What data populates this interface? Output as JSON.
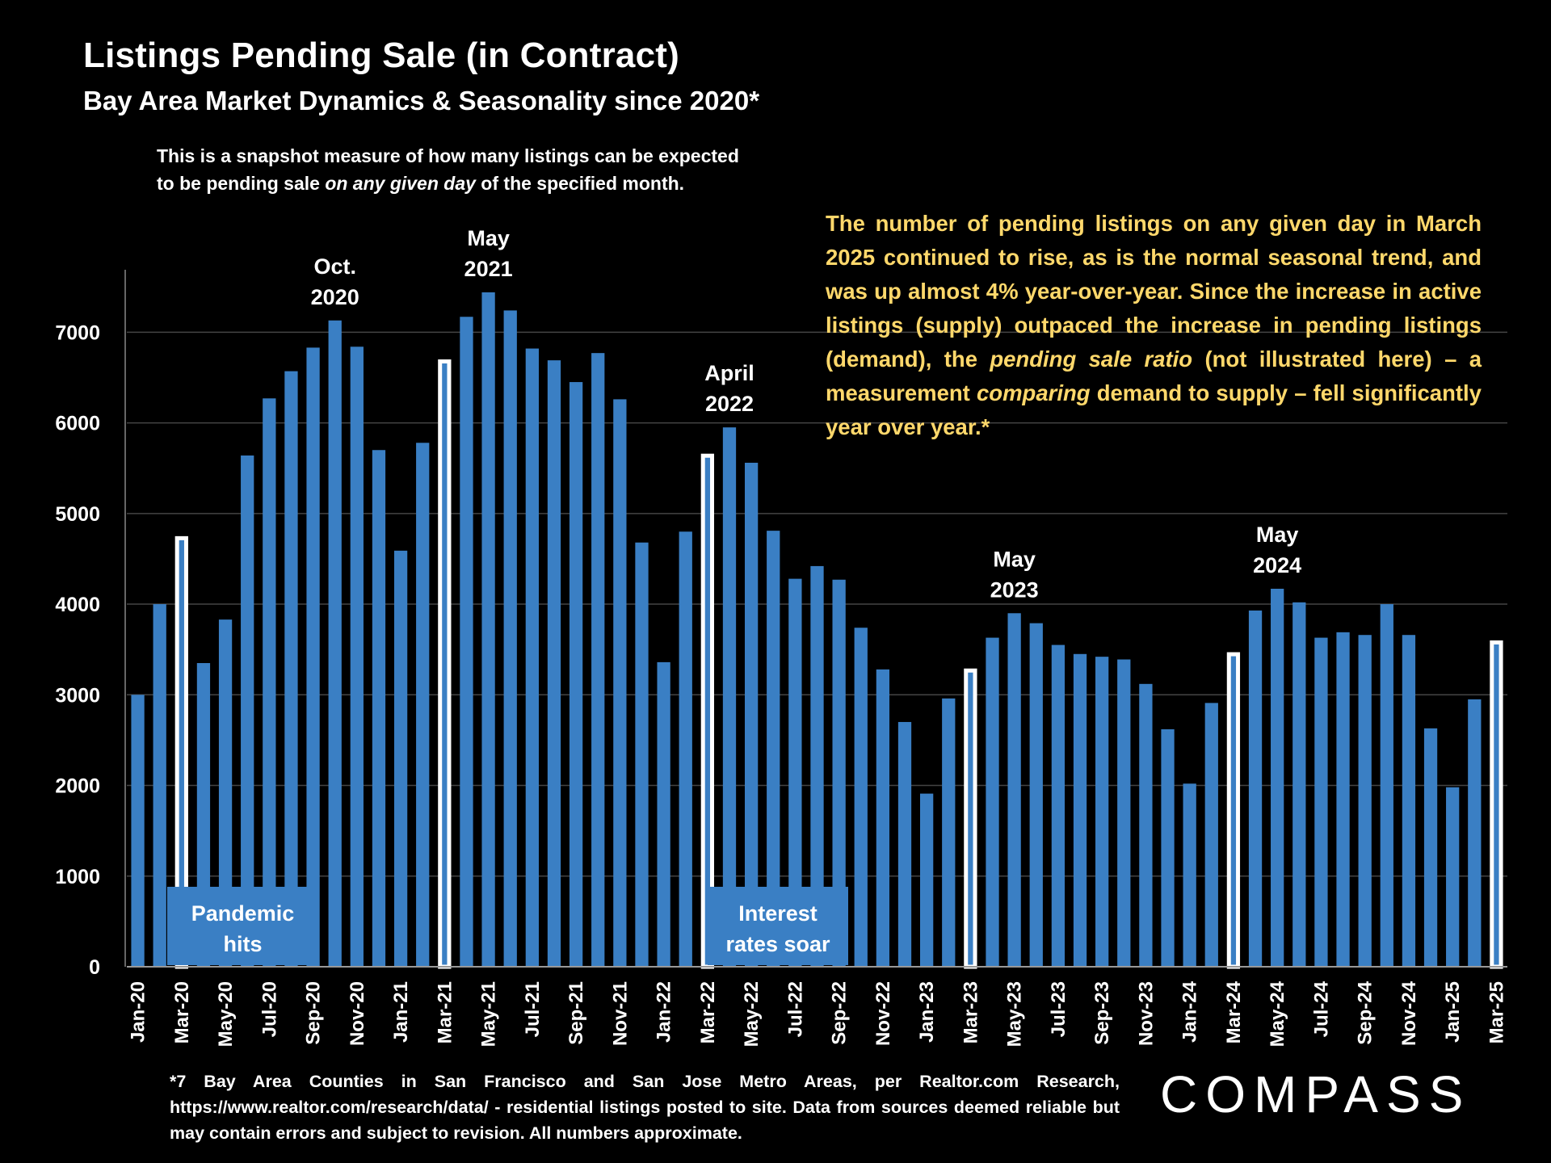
{
  "chart_data": {
    "type": "bar",
    "title": "Listings Pending Sale (in Contract)",
    "subtitle": "Bay Area Market Dynamics & Seasonality since 2020*",
    "ylim": [
      0,
      7600
    ],
    "yticks": [
      0,
      1000,
      2000,
      3000,
      4000,
      5000,
      6000,
      7000
    ],
    "grid": true,
    "categories": [
      "Jan-20",
      "Feb-20",
      "Mar-20",
      "Apr-20",
      "May-20",
      "Jun-20",
      "Jul-20",
      "Aug-20",
      "Sep-20",
      "Oct-20",
      "Nov-20",
      "Dec-20",
      "Jan-21",
      "Feb-21",
      "Mar-21",
      "Apr-21",
      "May-21",
      "Jun-21",
      "Jul-21",
      "Aug-21",
      "Sep-21",
      "Oct-21",
      "Nov-21",
      "Dec-21",
      "Jan-22",
      "Feb-22",
      "Mar-22",
      "Apr-22",
      "May-22",
      "Jun-22",
      "Jul-22",
      "Aug-22",
      "Sep-22",
      "Oct-22",
      "Nov-22",
      "Dec-22",
      "Jan-23",
      "Feb-23",
      "Mar-23",
      "Apr-23",
      "May-23",
      "Jun-23",
      "Jul-23",
      "Aug-23",
      "Sep-23",
      "Oct-23",
      "Nov-23",
      "Dec-23",
      "Jan-24",
      "Feb-24",
      "Mar-24",
      "Apr-24",
      "May-24",
      "Jun-24",
      "Jul-24",
      "Aug-24",
      "Sep-24",
      "Oct-24",
      "Nov-24",
      "Dec-24",
      "Jan-25",
      "Feb-25",
      "Mar-25"
    ],
    "tick_labels": [
      "Jan-20",
      "Mar-20",
      "May-20",
      "Jul-20",
      "Sep-20",
      "Nov-20",
      "Jan-21",
      "Mar-21",
      "May-21",
      "Jul-21",
      "Sep-21",
      "Nov-21",
      "Jan-22",
      "Mar-22",
      "May-22",
      "Jul-22",
      "Sep-22",
      "Nov-22",
      "Jan-23",
      "Mar-23",
      "May-23",
      "Jul-23",
      "Sep-23",
      "Nov-23",
      "Jan-24",
      "Mar-24",
      "May-24",
      "Jul-24",
      "Sep-24",
      "Nov-24",
      "Jan-25",
      "Mar-25"
    ],
    "values": [
      3000,
      4000,
      4750,
      3350,
      3830,
      5640,
      6270,
      6570,
      6830,
      7130,
      6840,
      5700,
      4590,
      5780,
      6700,
      7170,
      7440,
      7240,
      6820,
      6690,
      6450,
      6770,
      6260,
      4680,
      3360,
      4800,
      5660,
      5950,
      5560,
      4810,
      4280,
      4420,
      4270,
      3740,
      3280,
      2700,
      1910,
      2960,
      3290,
      3630,
      3900,
      3790,
      3550,
      3450,
      3420,
      3390,
      3120,
      2620,
      2020,
      2910,
      3470,
      3930,
      4170,
      4020,
      3630,
      3690,
      3660,
      4000,
      3660,
      2630,
      1980,
      2950,
      3600
    ],
    "highlighted": [
      "Mar-20",
      "Mar-21",
      "Mar-22",
      "Mar-23",
      "Mar-24",
      "Mar-25"
    ],
    "annotations": [
      {
        "lines": [
          "Oct.",
          "2020"
        ],
        "category": "Oct-20"
      },
      {
        "lines": [
          "May",
          "2021"
        ],
        "category": "May-21"
      },
      {
        "lines": [
          "April",
          "2022"
        ],
        "category": "Apr-22"
      },
      {
        "lines": [
          "May",
          "2023"
        ],
        "category": "May-23"
      },
      {
        "lines": [
          "May",
          "2024"
        ],
        "category": "May-24"
      }
    ],
    "event_boxes": [
      {
        "lines": [
          "Pandemic",
          "hits"
        ]
      },
      {
        "lines": [
          "Interest",
          "rates soar"
        ]
      }
    ],
    "colors": {
      "bar": "#3a7fc4",
      "highlight_border": "#ffffff",
      "grid": "#444444",
      "commentary": "#ffd86b"
    }
  },
  "note": {
    "line1": "This is a snapshot measure of how many listings can be expected",
    "line2_pre": "to be pending sale ",
    "line2_em": "on any given day",
    "line2_post": " of the specified month."
  },
  "commentary": {
    "p1": "The number of pending listings on any given day in March 2025 continued to rise, as is the normal seasonal trend, and was up almost 4% year-over-year. Since the increase in active listings (supply) outpaced the increase in pending listings (demand), the ",
    "em1": "pending sale ratio",
    "p2": " (not illustrated here) – a measurement ",
    "em2": "comparing",
    "p3": " demand to supply – fell significantly year over year.*"
  },
  "footnote": "*7 Bay Area Counties in San Francisco and San Jose Metro Areas, per Realtor.com Research, https://www.realtor.com/research/data/ - residential listings posted to site.  Data from sources deemed reliable but may contain errors and subject to revision. All numbers approximate.",
  "logo": "COMPASS"
}
